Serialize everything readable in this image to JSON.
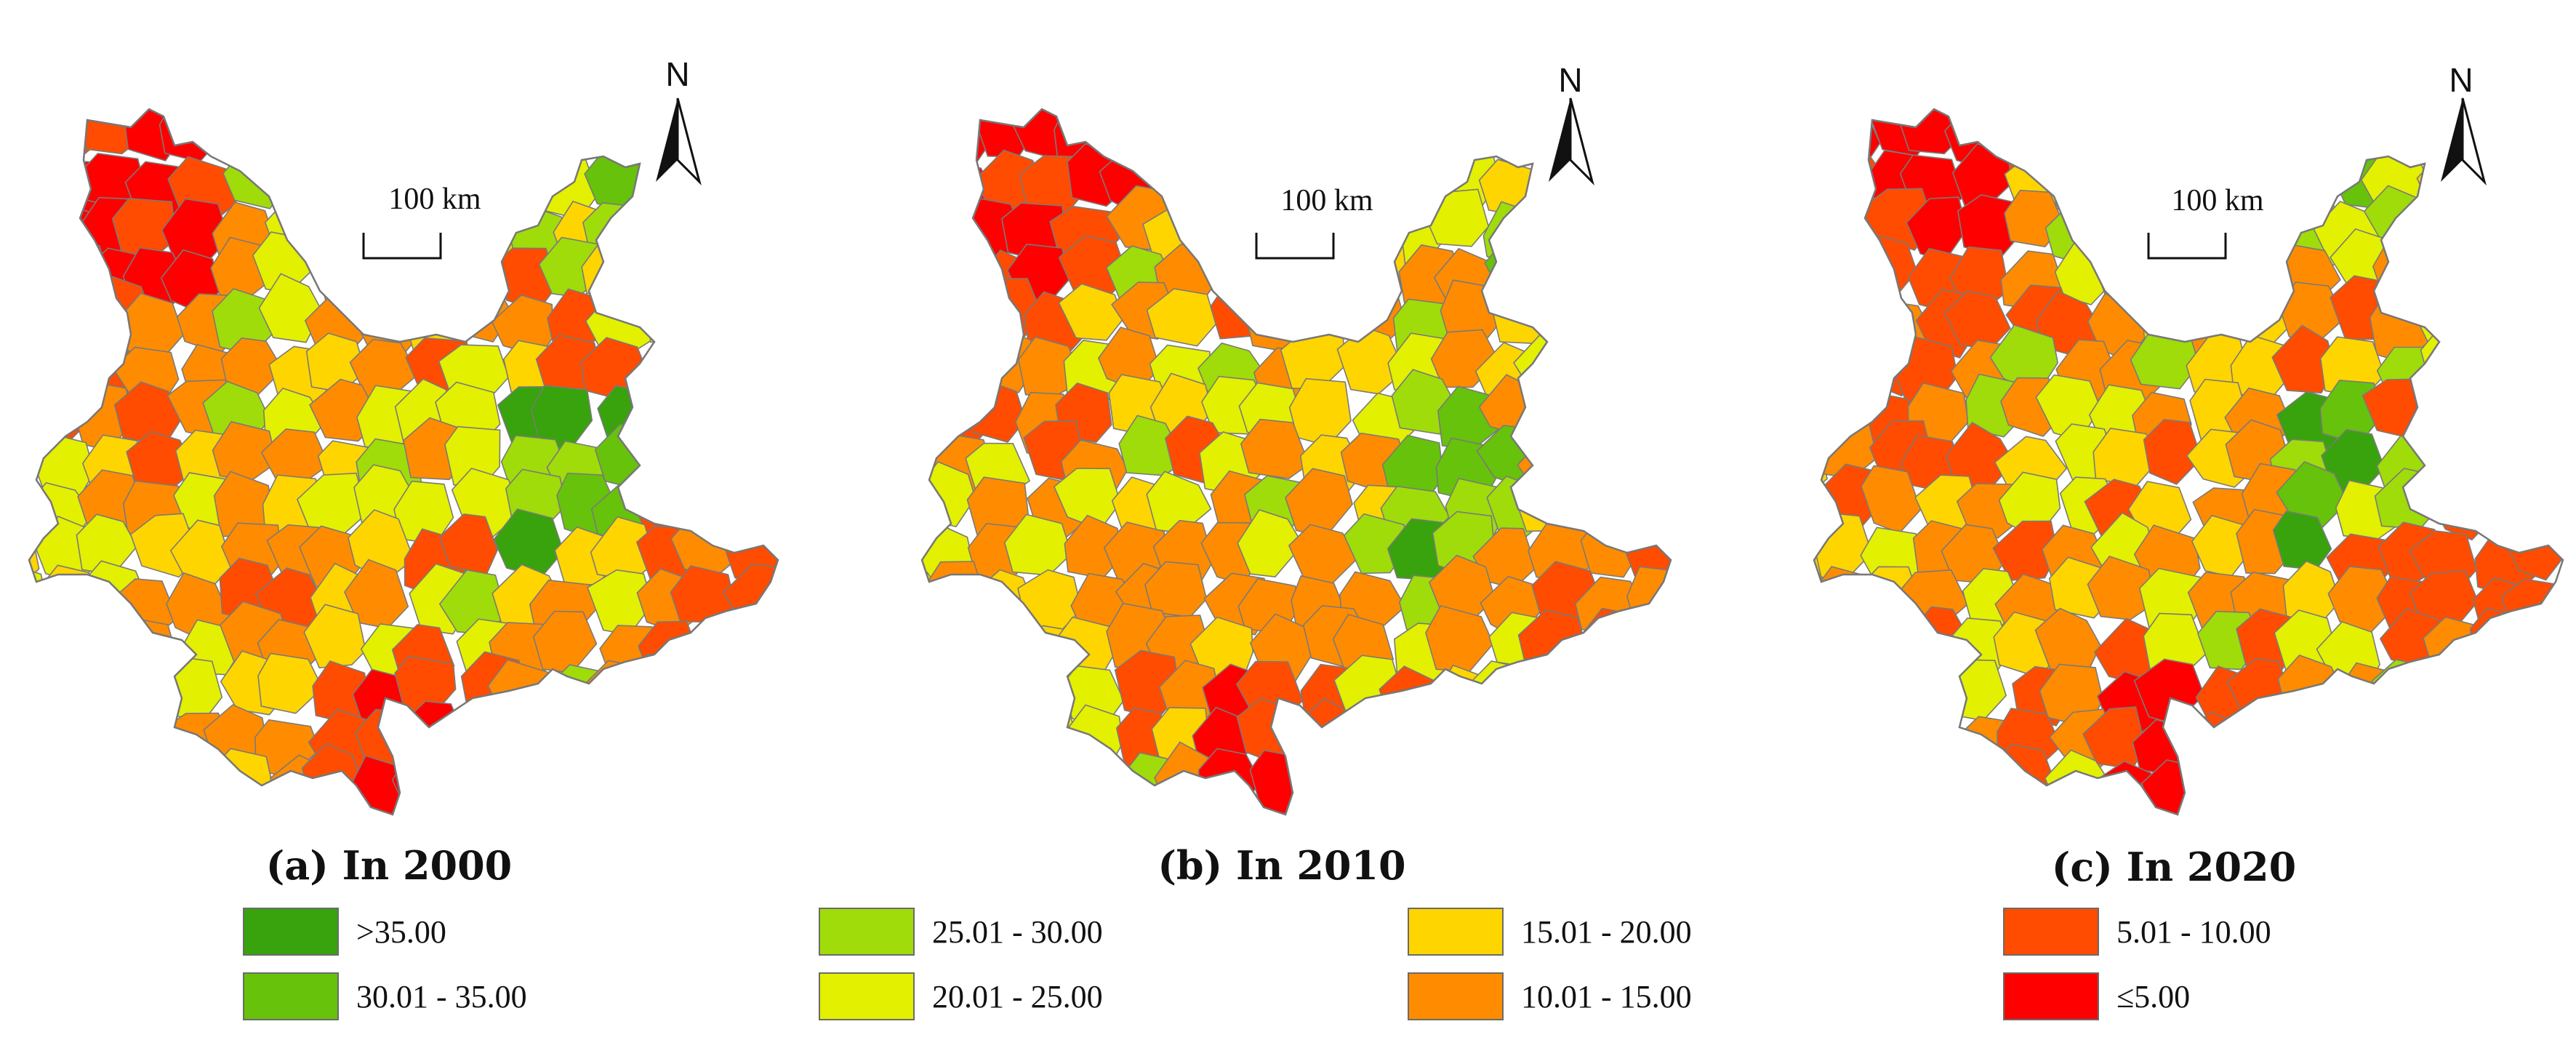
{
  "panels": [
    {
      "caption": "(a) In 2000",
      "scale_label": "100 km",
      "north_label": "N",
      "year": 2000
    },
    {
      "caption": "(b) In 2010",
      "scale_label": "100 km",
      "north_label": "N",
      "year": 2010
    },
    {
      "caption": "(c) In 2020",
      "scale_label": "100 km",
      "north_label": "N",
      "year": 2020
    }
  ],
  "legend": [
    {
      "label": ">35.00",
      "color": "#38a30c"
    },
    {
      "label": "30.01 - 35.00",
      "color": "#66c20a"
    },
    {
      "label": "25.01 - 30.00",
      "color": "#9fdc0a"
    },
    {
      "label": "20.01 - 25.00",
      "color": "#e3f000"
    },
    {
      "label": "15.01 - 20.00",
      "color": "#ffd500"
    },
    {
      "label": "10.01 - 15.00",
      "color": "#ff8c00"
    },
    {
      "label": "5.01 - 10.00",
      "color": "#ff4c00"
    },
    {
      "label": "≤5.00",
      "color": "#ff0000"
    }
  ]
}
